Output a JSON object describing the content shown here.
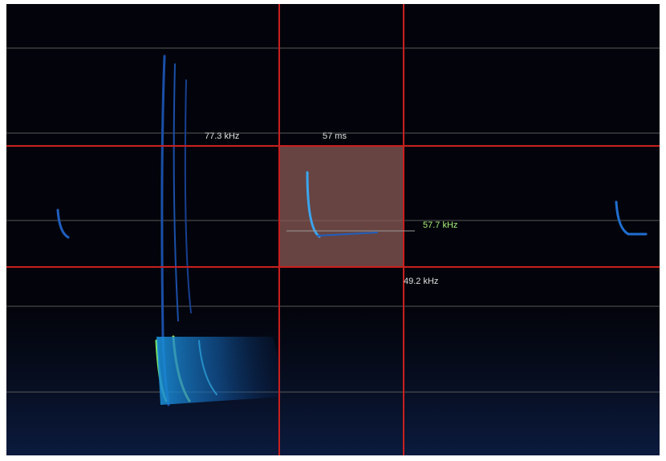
{
  "measurements": {
    "upper_frequency": "77.3 kHz",
    "duration": "57 ms",
    "peak_frequency": "57.7 kHz",
    "lower_frequency": "49.2 kHz"
  }
}
